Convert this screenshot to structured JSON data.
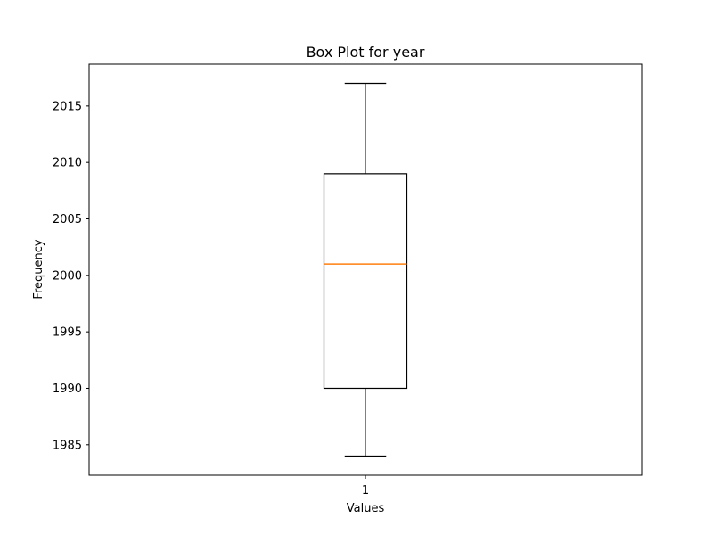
{
  "chart_data": {
    "type": "box",
    "title": "Box Plot for year",
    "xlabel": "Values",
    "ylabel": "Frequency",
    "categories": [
      "1"
    ],
    "boxes": [
      {
        "category": "1",
        "whisker_low": 1984,
        "q1": 1990,
        "median": 2001,
        "q3": 2009,
        "whisker_high": 2017
      }
    ],
    "ylim": [
      1982.3,
      2018.7
    ],
    "yticks": [
      1985,
      1990,
      1995,
      2000,
      2005,
      2010,
      2015
    ],
    "grid": false,
    "colors": {
      "box": "#000000",
      "median": "#ff7f0e"
    }
  }
}
